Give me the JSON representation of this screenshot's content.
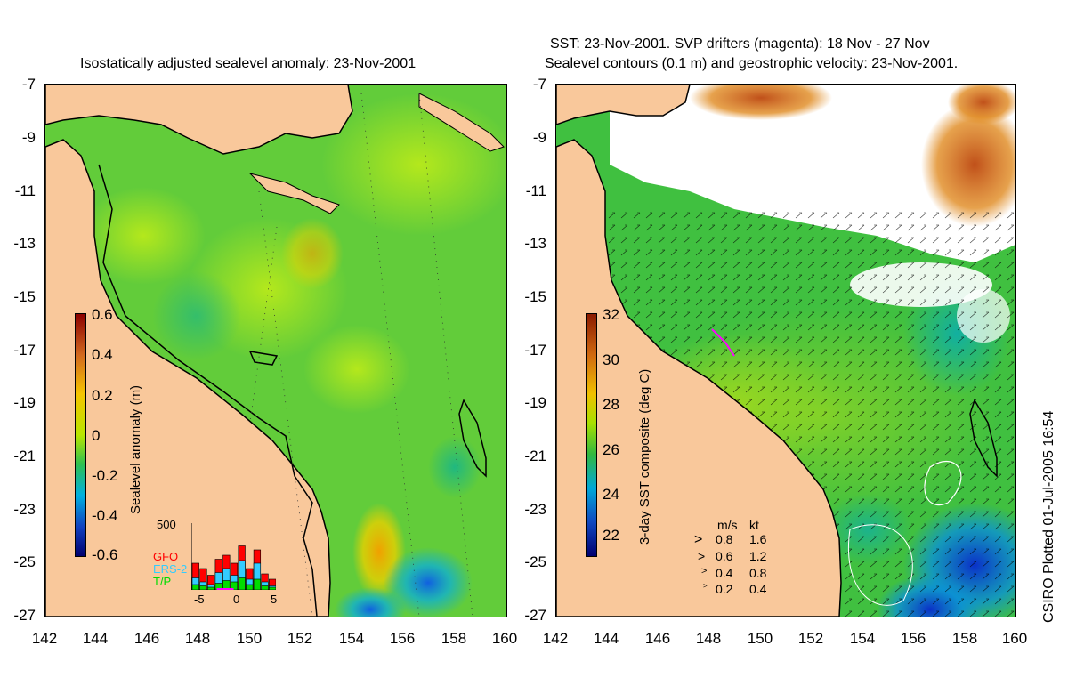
{
  "left_panel": {
    "title": "Isostatically adjusted sealevel anomaly: 23-Nov-2001",
    "colorbar": {
      "label": "Sealevel anomaly (m)",
      "ticks": [
        "0.6",
        "0.4",
        "0.2",
        "0",
        "-0.2",
        "-0.4",
        "-0.6"
      ],
      "colors": [
        "#8b0000",
        "#d2691e",
        "#f5c400",
        "#b8e600",
        "#2ec050",
        "#00b0e0",
        "#1040c0",
        "#00006e"
      ]
    },
    "inset": {
      "ymax_label": "500",
      "legend": [
        "GFO",
        "ERS-2",
        "T/P"
      ],
      "legend_colors": [
        "#ff0000",
        "#33ccff",
        "#00dd00"
      ],
      "xticks": [
        "-5",
        "0",
        "5"
      ],
      "bars_total": [
        200,
        160,
        110,
        230,
        260,
        200,
        330,
        160,
        300,
        120,
        80
      ],
      "bars_ers": [
        90,
        60,
        40,
        130,
        160,
        110,
        220,
        80,
        200,
        60,
        30
      ],
      "bars_tp": [
        40,
        30,
        20,
        50,
        70,
        60,
        90,
        40,
        80,
        30,
        20
      ]
    }
  },
  "right_panel": {
    "title_line1": "SST: 23-Nov-2001. SVP drifters (magenta): 18 Nov - 27 Nov",
    "title_line2": "Sealevel contours (0.1 m) and geostrophic velocity: 23-Nov-2001.",
    "colorbar": {
      "label": "3-day SST composite (deg C)",
      "ticks": [
        "32",
        "30",
        "28",
        "26",
        "24",
        "22"
      ],
      "colors": [
        "#8b1a00",
        "#d06a10",
        "#f0c000",
        "#a8e000",
        "#30b840",
        "#00a8d8",
        "#1048c0",
        "#000070"
      ]
    },
    "velocity_legend": {
      "header_ms": "m/s",
      "header_kt": "kt",
      "rows": [
        {
          "ms": "0.8",
          "kt": "1.6"
        },
        {
          "ms": "0.6",
          "kt": "1.2"
        },
        {
          "ms": "0.4",
          "kt": "0.8"
        },
        {
          "ms": "0.2",
          "kt": "0.4"
        }
      ]
    }
  },
  "axes": {
    "y_ticks": [
      "-7",
      "-9",
      "-11",
      "-13",
      "-15",
      "-17",
      "-19",
      "-21",
      "-23",
      "-25",
      "-27"
    ],
    "x_ticks": [
      "142",
      "144",
      "146",
      "148",
      "150",
      "152",
      "154",
      "156",
      "158",
      "160"
    ]
  },
  "credit": "CSIRO Plotted 01-Jul-2005 16:54",
  "colors": {
    "land": "#f9c89b",
    "ocean_base": "#5ccc3c",
    "cloud": "#ffffff"
  }
}
